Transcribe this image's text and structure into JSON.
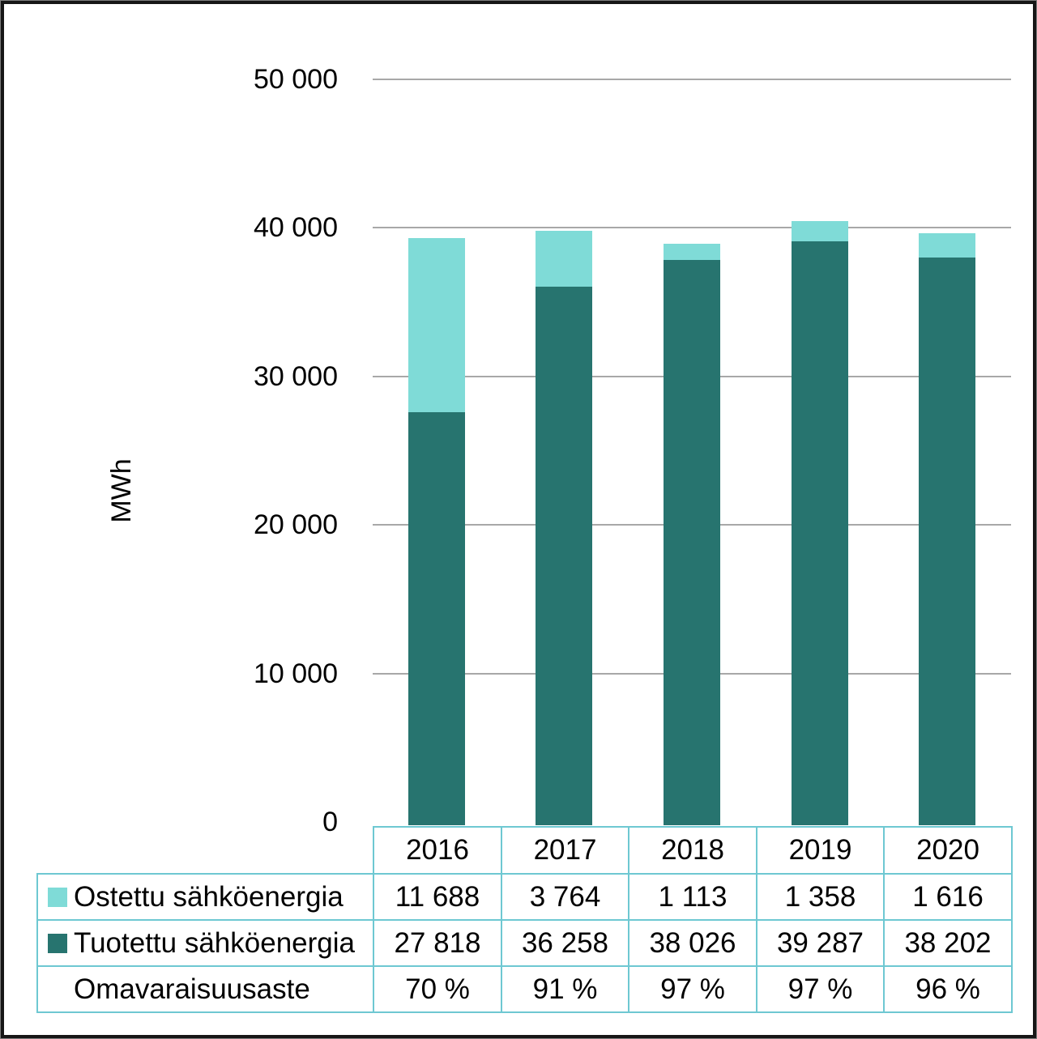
{
  "page": {
    "background": "#ffffff",
    "frame_color": "#161616"
  },
  "chart_data": {
    "type": "bar",
    "stacked": true,
    "orientation": "vertical",
    "categories": [
      "2016",
      "2017",
      "2018",
      "2019",
      "2020"
    ],
    "series": [
      {
        "name": "Ostettu sähköenergia",
        "color": "#7fdbd7",
        "stack_order": "top",
        "values": [
          11688,
          3764,
          1113,
          1358,
          1616
        ],
        "formatted": [
          "11 688",
          "3 764",
          "1 113",
          "1 358",
          "1 616"
        ]
      },
      {
        "name": "Tuotettu sähköenergia",
        "color": "#27746f",
        "stack_order": "bottom",
        "values": [
          27818,
          36258,
          38026,
          39287,
          38202
        ],
        "formatted": [
          "27 818",
          "36 258",
          "38 026",
          "39 287",
          "38 202"
        ]
      }
    ],
    "extra_table_rows": [
      {
        "name": "Omavaraisuusaste",
        "values": [
          "70 %",
          "91 %",
          "97 %",
          "97 %",
          "96 %"
        ]
      }
    ],
    "title": "",
    "xlabel": "",
    "ylabel": "MWh",
    "ylim": [
      0,
      50000
    ],
    "yticks": [
      {
        "value": 0,
        "label": "0"
      },
      {
        "value": 10000,
        "label": "10 000"
      },
      {
        "value": 20000,
        "label": "20 000"
      },
      {
        "value": 30000,
        "label": "30 000"
      },
      {
        "value": 40000,
        "label": "40 000"
      },
      {
        "value": 50000,
        "label": "50 000"
      }
    ],
    "grid": true,
    "gridline_color": "#a8a8a8",
    "legend_position": "table-left",
    "table_border_color": "#6ec8d2",
    "text_color": "#000000"
  }
}
